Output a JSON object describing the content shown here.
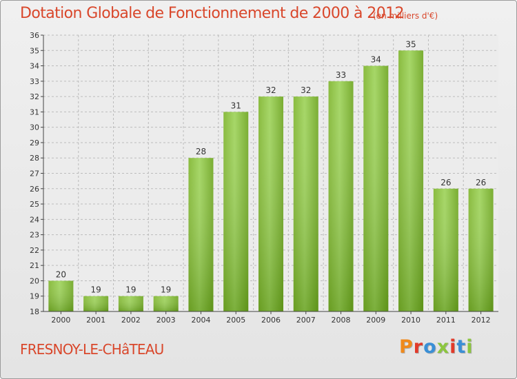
{
  "header": {
    "title": "Dotation Globale de Fonctionnement de 2000 à 2012",
    "unit_note": "(en milliers d'€)"
  },
  "footer": {
    "place_name": "FRESNOY-LE-CHâTEAU",
    "logo_text": "Proxiti",
    "logo_colors": [
      "#f08a1c",
      "#e23a2a",
      "#3a8fd6",
      "#8cc63f",
      "#e23a2a",
      "#3a8fd6",
      "#8cc63f"
    ]
  },
  "colors": {
    "bar_light": "#9ed35a",
    "bar_dark": "#5f9a16",
    "axis": "#444444",
    "grid": "#bbbbbb",
    "text": "#333333",
    "accent": "#d9472b"
  },
  "chart_data": {
    "type": "bar",
    "categories": [
      "2000",
      "2001",
      "2002",
      "2003",
      "2004",
      "2005",
      "2006",
      "2007",
      "2008",
      "2009",
      "2010",
      "2011",
      "2012"
    ],
    "values": [
      20,
      19,
      19,
      19,
      28,
      31,
      32,
      32,
      33,
      34,
      35,
      26,
      26
    ],
    "data_labels": [
      "20",
      "19",
      "19",
      "19",
      "28",
      "31",
      "32",
      "32",
      "33",
      "34",
      "35",
      "26",
      "26"
    ],
    "y_ticks": [
      "18",
      "19",
      "20",
      "21",
      "22",
      "23",
      "24",
      "25",
      "26",
      "27",
      "28",
      "29",
      "30",
      "31",
      "32",
      "33",
      "34",
      "35",
      "36"
    ],
    "ylim": [
      18,
      36
    ],
    "grid": true
  }
}
